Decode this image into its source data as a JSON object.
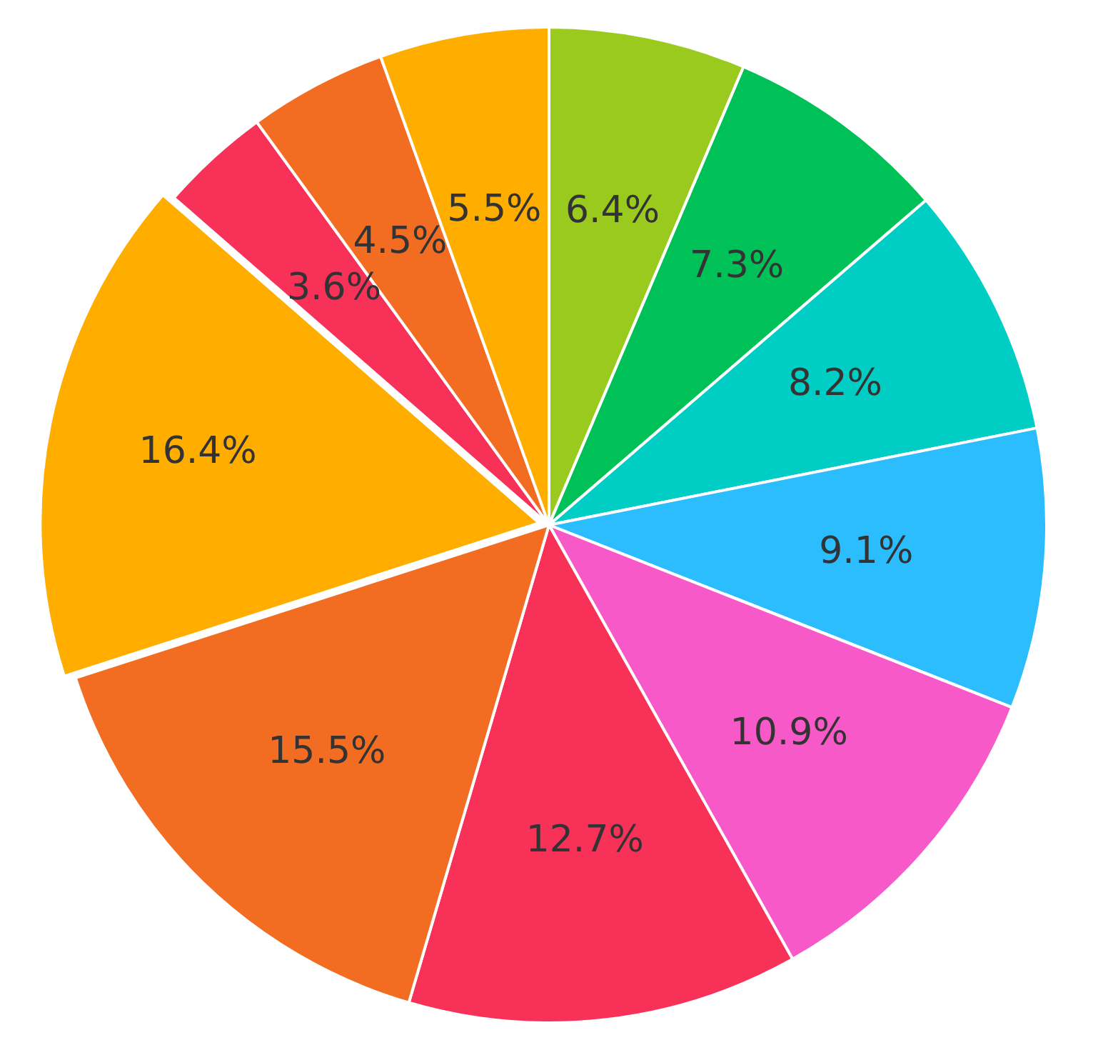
{
  "chart_data": {
    "type": "pie",
    "categories": [
      null,
      null,
      null,
      null,
      null,
      null,
      null,
      null,
      null,
      null,
      null
    ],
    "values": [
      6.4,
      7.3,
      8.2,
      9.1,
      10.9,
      12.7,
      15.5,
      16.4,
      3.6,
      4.5,
      5.5
    ],
    "colors": [
      "#9bca1e",
      "#00c157",
      "#00cdc4",
      "#2bbdfd",
      "#f75ac8",
      "#f83158",
      "#f26d21",
      "#ffae00",
      "#f83158",
      "#f26d21",
      "#ffae00"
    ],
    "value_labels": [
      "6.4%",
      "7.3%",
      "8.2%",
      "9.1%",
      "10.9%",
      "12.7%",
      "15.5%",
      "16.4%",
      "3.6%",
      "4.5%",
      "5.5%"
    ]
  }
}
